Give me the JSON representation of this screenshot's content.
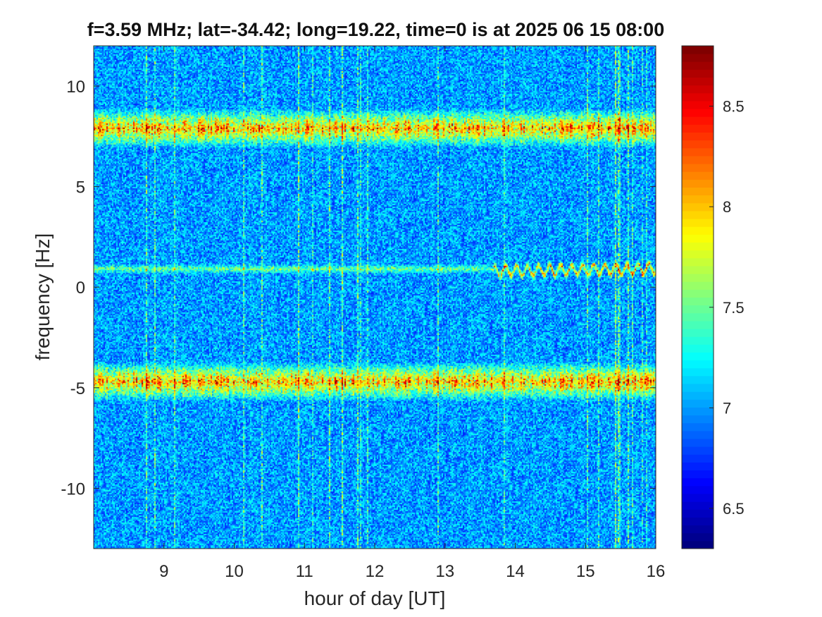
{
  "chart_data": {
    "type": "heatmap",
    "title": "f=3.59 MHz;  lat=-34.42; long=19.22, time=0 is at 2025 06 15 08:00",
    "xlabel": "hour of day [UT]",
    "ylabel": "frequency [Hz]",
    "xlim": [
      8,
      16
    ],
    "ylim": [
      -13,
      12
    ],
    "xticks": [
      9,
      10,
      11,
      12,
      13,
      14,
      15,
      16
    ],
    "yticks": [
      -10,
      -5,
      0,
      5,
      10
    ],
    "colormap": "jet",
    "clim": [
      6.3,
      8.8
    ],
    "colorbar_ticks": [
      6.5,
      7,
      7.5,
      8,
      8.5
    ],
    "background_level": 7.0,
    "features": [
      {
        "frequency_hz": 7.9,
        "level": 8.4,
        "hours": [
          8,
          16
        ]
      },
      {
        "frequency_hz": -4.7,
        "level": 8.4,
        "hours": [
          8,
          16
        ]
      },
      {
        "frequency_hz": 0.9,
        "level": 7.8,
        "hours": [
          8,
          13.7
        ]
      },
      {
        "frequency_hz": 0.8,
        "level": 8.7,
        "hours": [
          13.7,
          16
        ]
      }
    ]
  }
}
